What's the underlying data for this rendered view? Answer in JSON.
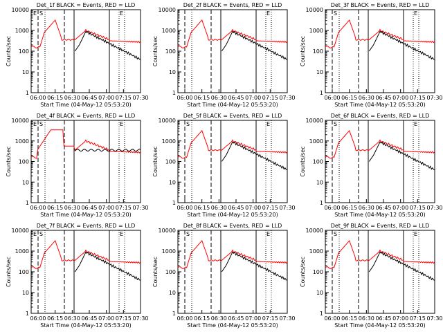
{
  "chart_data": [
    {
      "type": "line",
      "title": "Det_1f BLACK = Events, RED = LLD",
      "xlabel": "Start Time (04-May-12 05:53:20)",
      "ylabel": "Counts/sec",
      "x_ticks": [
        "06:00",
        "06:15",
        "06:30",
        "06:45",
        "07:00",
        "07:15",
        "07:30"
      ],
      "y_ticks": [
        "1",
        "10",
        "100",
        "1000",
        "10000"
      ],
      "y_scale": "log",
      "ylim": [
        1,
        10000
      ],
      "markers": [
        "E",
        "S",
        "E"
      ],
      "colors": {
        "events": "#000000",
        "lld": "#ff0000"
      }
    },
    {
      "type": "line",
      "title": "Det_2f BLACK = Events, RED = LLD",
      "xlabel": "Start Time (04-May-12 05:53:20)",
      "ylabel": "Counts/sec",
      "x_ticks": [
        "06:00",
        "06:15",
        "06:30",
        "06:45",
        "07:00",
        "07:15",
        "07:30"
      ],
      "y_ticks": [
        "1",
        "10",
        "100",
        "1000",
        "10000"
      ],
      "y_scale": "log",
      "ylim": [
        1,
        10000
      ],
      "markers": [
        "E"
      ],
      "colors": {
        "events": "#000000",
        "lld": "#ff0000"
      }
    },
    {
      "type": "line",
      "title": "Det_3f BLACK = Events, RED = LLD",
      "xlabel": "Start Time (04-May-12 05:53:20)",
      "ylabel": "Counts/sec",
      "x_ticks": [
        "06:00",
        "06:15",
        "06:30",
        "06:45",
        "07:00",
        "07:15",
        "07:30"
      ],
      "y_ticks": [
        "1",
        "10",
        "100",
        "1000",
        "10000"
      ],
      "y_scale": "log",
      "ylim": [
        1,
        10000
      ],
      "markers": [
        "S",
        "E"
      ],
      "colors": {
        "events": "#000000",
        "lld": "#ff0000"
      }
    },
    {
      "type": "line",
      "title": "Det_4f BLACK = Events, RED = LLD",
      "xlabel": "Start Time (04-May-12 05:53:20)",
      "ylabel": "Counts/sec",
      "x_ticks": [
        "06:00",
        "06:15",
        "06:30",
        "06:45",
        "07:00",
        "07:15",
        "07:30"
      ],
      "y_ticks": [
        "1",
        "10",
        "100",
        "1000",
        "10000"
      ],
      "y_scale": "log",
      "ylim": [
        1,
        10000
      ],
      "markers": [
        "E",
        "S",
        "E"
      ],
      "colors": {
        "events": "#000000",
        "lld": "#ff0000"
      }
    },
    {
      "type": "line",
      "title": "Det_5f BLACK = Events, RED = LLD",
      "xlabel": "Start Time (04-May-12 05:53:20)",
      "ylabel": "Counts/sec",
      "x_ticks": [
        "06:00",
        "06:15",
        "06:30",
        "06:45",
        "07:00",
        "07:15",
        "07:30"
      ],
      "y_ticks": [
        "1",
        "10",
        "100",
        "1000",
        "10000"
      ],
      "y_scale": "log",
      "ylim": [
        1,
        10000
      ],
      "markers": [
        "S",
        "E"
      ],
      "colors": {
        "events": "#000000",
        "lld": "#ff0000"
      }
    },
    {
      "type": "line",
      "title": "Det_6f BLACK = Events, RED = LLD",
      "xlabel": "Start Time (04-May-12 05:53:20)",
      "ylabel": "Counts/sec",
      "x_ticks": [
        "06:00",
        "06:15",
        "06:30",
        "06:45",
        "07:00",
        "07:15",
        "07:30"
      ],
      "y_ticks": [
        "1",
        "10",
        "100",
        "1000",
        "10000"
      ],
      "y_scale": "log",
      "ylim": [
        1,
        10000
      ],
      "markers": [
        "S",
        "E"
      ],
      "colors": {
        "events": "#000000",
        "lld": "#ff0000"
      }
    },
    {
      "type": "line",
      "title": "Det_7f BLACK = Events, RED = LLD",
      "xlabel": "Start Time (04-May-12 05:53:20)",
      "ylabel": "Counts/sec",
      "x_ticks": [
        "06:00",
        "06:15",
        "06:30",
        "06:45",
        "07:00",
        "07:15",
        "07:30"
      ],
      "y_ticks": [
        "1",
        "10",
        "100",
        "1000",
        "10000"
      ],
      "y_scale": "log",
      "ylim": [
        1,
        10000
      ],
      "markers": [
        "E",
        "S",
        "E"
      ],
      "colors": {
        "events": "#000000",
        "lld": "#ff0000"
      }
    },
    {
      "type": "line",
      "title": "Det_8f BLACK = Events, RED = LLD",
      "xlabel": "Start Time (04-May-12 05:53:20)",
      "ylabel": "Counts/sec",
      "x_ticks": [
        "06:00",
        "06:15",
        "06:30",
        "06:45",
        "07:00",
        "07:15",
        "07:30"
      ],
      "y_ticks": [
        "1",
        "10",
        "100",
        "1000",
        "10000"
      ],
      "y_scale": "log",
      "ylim": [
        1,
        10000
      ],
      "markers": [
        "S",
        "E"
      ],
      "colors": {
        "events": "#000000",
        "lld": "#ff0000"
      }
    },
    {
      "type": "line",
      "title": "Det_9f BLACK = Events, RED = LLD",
      "xlabel": "Start Time (04-May-12 05:53:20)",
      "ylabel": "Counts/sec",
      "x_ticks": [
        "06:00",
        "06:15",
        "06:30",
        "06:45",
        "07:00",
        "07:15",
        "07:30"
      ],
      "y_ticks": [
        "1",
        "10",
        "100",
        "1000",
        "10000"
      ],
      "y_scale": "log",
      "ylim": [
        1,
        10000
      ],
      "markers": [
        "S",
        "E"
      ],
      "colors": {
        "events": "#000000",
        "lld": "#ff0000"
      }
    }
  ]
}
